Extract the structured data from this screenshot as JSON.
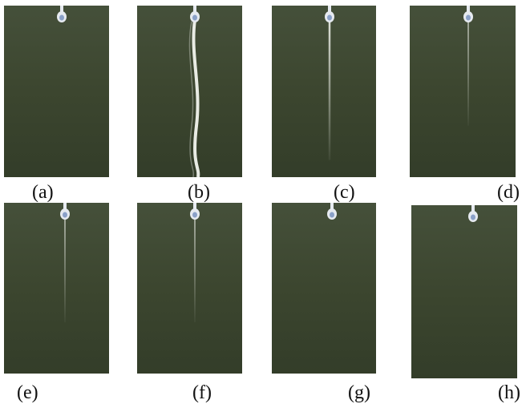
{
  "figure": {
    "panels": [
      {
        "label": "(a)",
        "jet": "none"
      },
      {
        "label": "(b)",
        "jet": "strong"
      },
      {
        "label": "(c)",
        "jet": "medium"
      },
      {
        "label": "(d)",
        "jet": "faint"
      },
      {
        "label": "(e)",
        "jet": "faint"
      },
      {
        "label": "(f)",
        "jet": "faint"
      },
      {
        "label": "(g)",
        "jet": "none"
      },
      {
        "label": "(h)",
        "jet": "none"
      }
    ],
    "colors": {
      "background": "#3f4a32",
      "nozzle": "#e6eaf0",
      "jet": "#f2f4ee"
    }
  }
}
